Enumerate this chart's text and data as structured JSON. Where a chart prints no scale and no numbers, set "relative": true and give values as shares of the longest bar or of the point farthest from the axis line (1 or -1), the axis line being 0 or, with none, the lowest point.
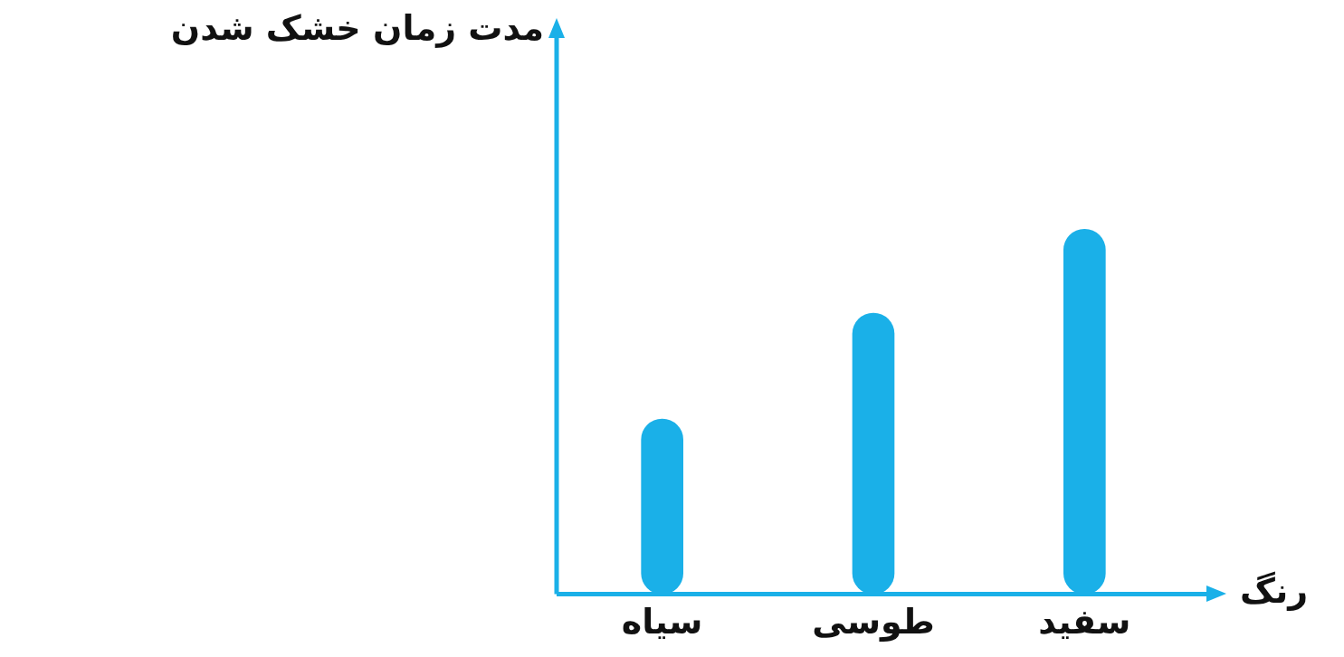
{
  "chart_data": {
    "type": "bar",
    "xlabel": "رنگ",
    "annotations": [
      "مدت زمان خشک شدن"
    ],
    "categories": [
      "سیاه",
      "طوسی",
      "سفید"
    ],
    "values": [
      0.48,
      0.77,
      1
    ],
    "color": "#1ab0e8",
    "relative": true,
    "grid": false,
    "legend": false
  }
}
